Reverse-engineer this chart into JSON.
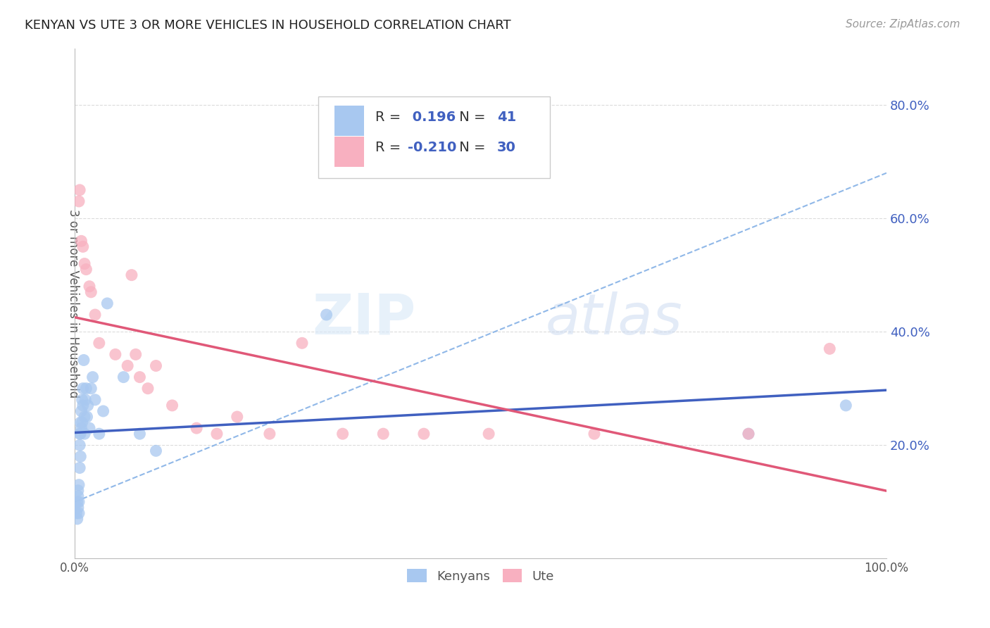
{
  "title": "KENYAN VS UTE 3 OR MORE VEHICLES IN HOUSEHOLD CORRELATION CHART",
  "source": "Source: ZipAtlas.com",
  "ylabel": "3 or more Vehicles in Household",
  "xlim": [
    0.0,
    1.0
  ],
  "ylim": [
    0.0,
    0.9
  ],
  "kenyan_R": "0.196",
  "kenyan_N": "41",
  "ute_R": "-0.210",
  "ute_N": "30",
  "kenyan_color": "#a8c8f0",
  "ute_color": "#f8b0c0",
  "kenyan_line_color": "#4060c0",
  "ute_line_color": "#e05878",
  "dash_line_color": "#90b8e8",
  "background_color": "#ffffff",
  "grid_color": "#cccccc",
  "watermark_zip": "ZIP",
  "watermark_atlas": "atlas",
  "kenyan_x": [
    0.002,
    0.003,
    0.003,
    0.004,
    0.004,
    0.004,
    0.005,
    0.005,
    0.005,
    0.006,
    0.006,
    0.006,
    0.007,
    0.007,
    0.007,
    0.008,
    0.008,
    0.009,
    0.009,
    0.01,
    0.01,
    0.011,
    0.012,
    0.012,
    0.013,
    0.014,
    0.015,
    0.016,
    0.018,
    0.02,
    0.022,
    0.025,
    0.03,
    0.035,
    0.04,
    0.06,
    0.08,
    0.1,
    0.31,
    0.83,
    0.95
  ],
  "kenyan_y": [
    0.08,
    0.1,
    0.07,
    0.12,
    0.09,
    0.11,
    0.1,
    0.08,
    0.13,
    0.22,
    0.2,
    0.16,
    0.24,
    0.22,
    0.18,
    0.26,
    0.23,
    0.28,
    0.24,
    0.3,
    0.27,
    0.35,
    0.25,
    0.22,
    0.28,
    0.3,
    0.25,
    0.27,
    0.23,
    0.3,
    0.32,
    0.28,
    0.22,
    0.26,
    0.45,
    0.32,
    0.22,
    0.19,
    0.43,
    0.22,
    0.27
  ],
  "ute_x": [
    0.005,
    0.006,
    0.008,
    0.01,
    0.012,
    0.014,
    0.018,
    0.02,
    0.025,
    0.03,
    0.05,
    0.065,
    0.07,
    0.075,
    0.08,
    0.09,
    0.1,
    0.12,
    0.15,
    0.175,
    0.2,
    0.24,
    0.28,
    0.33,
    0.38,
    0.43,
    0.51,
    0.64,
    0.83,
    0.93
  ],
  "ute_y": [
    0.63,
    0.65,
    0.56,
    0.55,
    0.52,
    0.51,
    0.48,
    0.47,
    0.43,
    0.38,
    0.36,
    0.34,
    0.5,
    0.36,
    0.32,
    0.3,
    0.34,
    0.27,
    0.23,
    0.22,
    0.25,
    0.22,
    0.38,
    0.22,
    0.22,
    0.22,
    0.22,
    0.22,
    0.22,
    0.37
  ]
}
